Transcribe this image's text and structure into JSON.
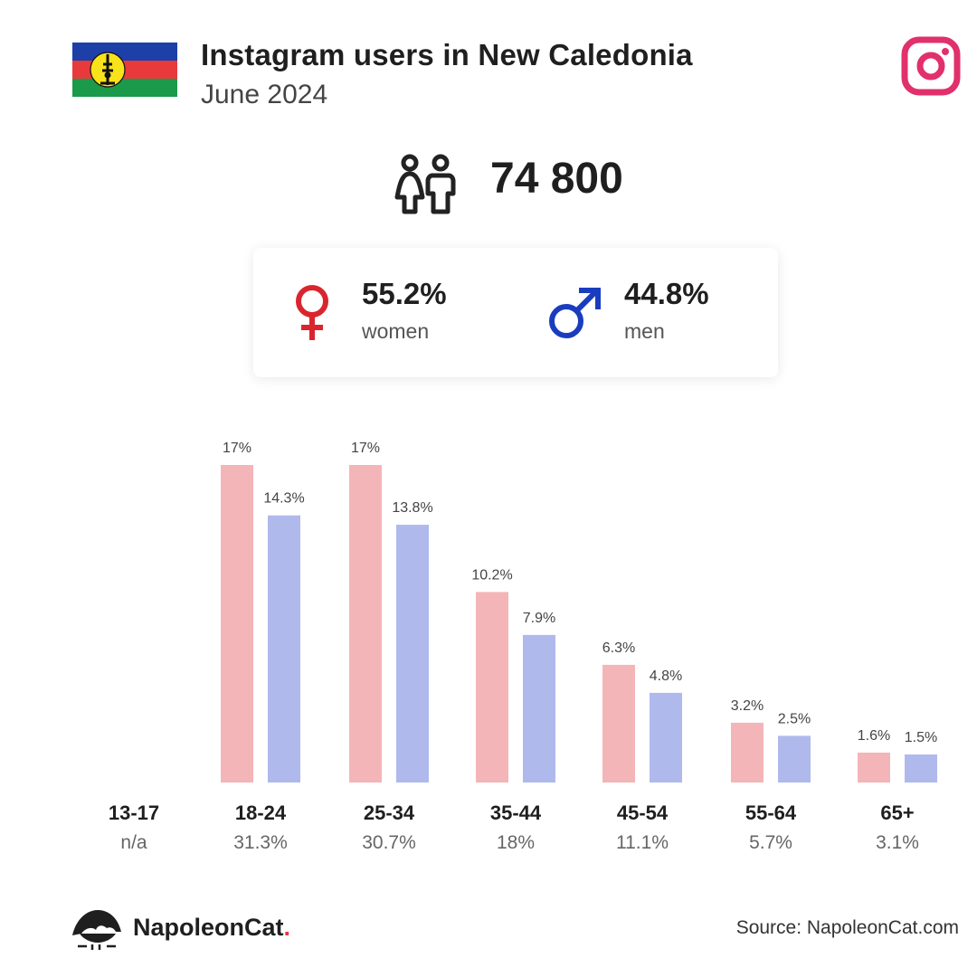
{
  "header": {
    "title": "Instagram users in New Caledonia",
    "subtitle": "June 2024"
  },
  "colors": {
    "women": "#f4b5b8",
    "men": "#b0b9ec",
    "female_symbol": "#d9262e",
    "male_symbol": "#1a3dbf",
    "instagram": "#e1306c"
  },
  "total": {
    "value": "74 800",
    "icon": "people-icon"
  },
  "gender": {
    "women": {
      "percent": "55.2%",
      "label": "women",
      "icon": "female-icon"
    },
    "men": {
      "percent": "44.8%",
      "label": "men",
      "icon": "male-icon"
    }
  },
  "chart_data": {
    "type": "bar",
    "categories": [
      "13-17",
      "18-24",
      "25-34",
      "35-44",
      "45-54",
      "55-64",
      "65+"
    ],
    "category_totals": [
      "n/a",
      "31.3%",
      "30.7%",
      "18%",
      "11.1%",
      "5.7%",
      "3.1%"
    ],
    "series": [
      {
        "name": "women",
        "values": [
          null,
          17,
          17,
          10.2,
          6.3,
          3.2,
          1.6
        ],
        "labels": [
          "",
          "17%",
          "17%",
          "10.2%",
          "6.3%",
          "3.2%",
          "1.6%"
        ]
      },
      {
        "name": "men",
        "values": [
          null,
          14.3,
          13.8,
          7.9,
          4.8,
          2.5,
          1.5
        ],
        "labels": [
          "",
          "14.3%",
          "13.8%",
          "7.9%",
          "4.8%",
          "2.5%",
          "1.5%"
        ]
      }
    ],
    "ylim": [
      0,
      17
    ],
    "grid": false
  },
  "footer": {
    "brand_main": "NapoleonCat",
    "brand_dot": ".",
    "source": "Source: NapoleonCat.com"
  }
}
